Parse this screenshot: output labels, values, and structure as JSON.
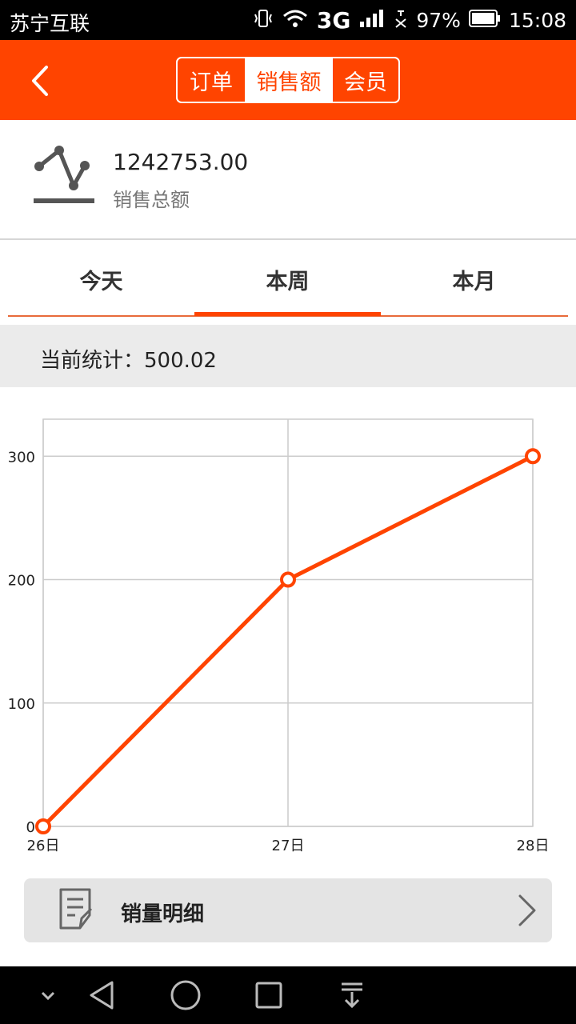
{
  "status_bar": {
    "carrier": "苏宁互联",
    "network": "3G",
    "battery": "97%",
    "time": "15:08"
  },
  "header": {
    "back_icon": "chevron-left-icon",
    "segments": [
      {
        "label": "订单",
        "selected": false
      },
      {
        "label": "销售额",
        "selected": true
      },
      {
        "label": "会员",
        "selected": false
      }
    ]
  },
  "summary": {
    "icon": "line-chart-icon",
    "value": "1242753.00",
    "label": "销售总额"
  },
  "period_tabs": [
    {
      "label": "今天",
      "selected": false
    },
    {
      "label": "本周",
      "selected": true
    },
    {
      "label": "本月",
      "selected": false
    }
  ],
  "current_stat": {
    "label": "当前统计：500.02"
  },
  "chart_data": {
    "type": "line",
    "categories": [
      "26日",
      "27日",
      "28日"
    ],
    "values": [
      0,
      200,
      300
    ],
    "y_ticks": [
      0,
      100,
      200,
      300
    ],
    "ylim": [
      0,
      330
    ],
    "grid": true,
    "color": "#ff4400"
  },
  "detail": {
    "icon": "document-edit-icon",
    "label": "销量明细",
    "chevron": "chevron-right-icon"
  },
  "nav_bar": {
    "icons": [
      "collapse-icon",
      "back-triangle-icon",
      "home-circle-icon",
      "recents-square-icon",
      "download-icon"
    ]
  },
  "colors": {
    "accent": "#ff4400",
    "status_bar": "#000000",
    "stat_bar_bg": "#ebebeb",
    "detail_bg": "#e4e4e4"
  }
}
